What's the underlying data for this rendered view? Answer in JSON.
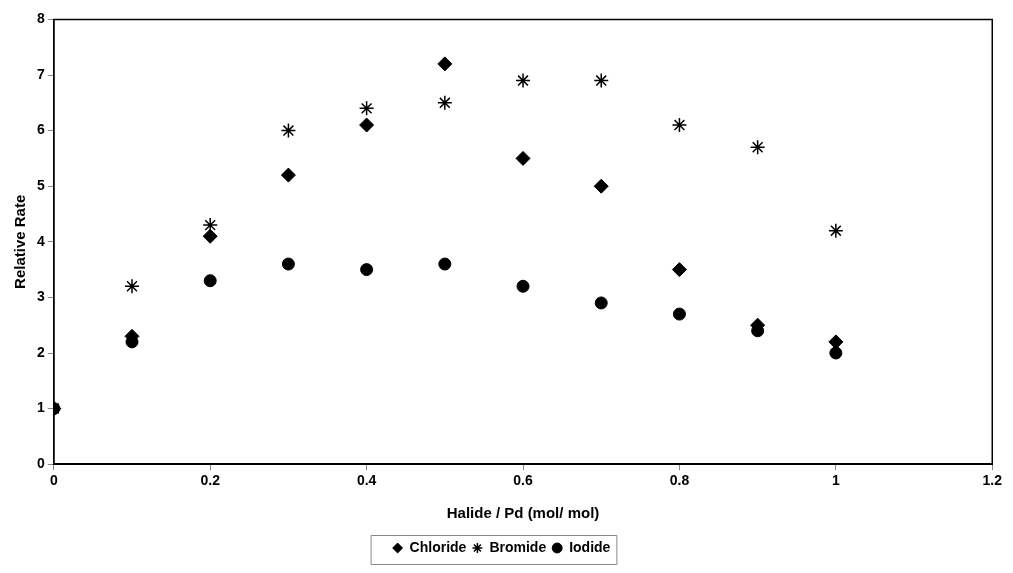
{
  "chart_data": {
    "type": "scatter",
    "xlabel": "Halide / Pd (mol/ mol)",
    "ylabel": "Relative Rate",
    "x": [
      0,
      0.1,
      0.2,
      0.3,
      0.4,
      0.5,
      0.6,
      0.7,
      0.8,
      0.9,
      1
    ],
    "series": [
      {
        "name": "Chloride",
        "color": "#000000",
        "marker": "diamond",
        "values": [
          1,
          2.3,
          4.1,
          5.2,
          6.1,
          7.2,
          5.5,
          5,
          3.5,
          2.5,
          2.2
        ]
      },
      {
        "name": "Bromide",
        "color": "#000000",
        "marker": "cross",
        "values": [
          1,
          3.2,
          4.3,
          6,
          6.4,
          6.5,
          6.9,
          6.9,
          6.1,
          5.7,
          4.2
        ]
      },
      {
        "name": "Iodide",
        "color": "#000000",
        "marker": "circle",
        "values": [
          1,
          2.2,
          3.3,
          3.6,
          3.5,
          3.6,
          3.2,
          2.9,
          2.7,
          2.4,
          2
        ]
      }
    ],
    "xlim": [
      0,
      1.2
    ],
    "xticks": [
      0,
      0.2,
      0.4,
      0.6,
      0.8,
      1,
      1.2
    ],
    "ylim": [
      0,
      8
    ],
    "yticks": [
      0,
      1,
      2,
      3,
      4,
      5,
      6,
      7,
      8
    ],
    "grid": false,
    "legend": "bottom"
  }
}
